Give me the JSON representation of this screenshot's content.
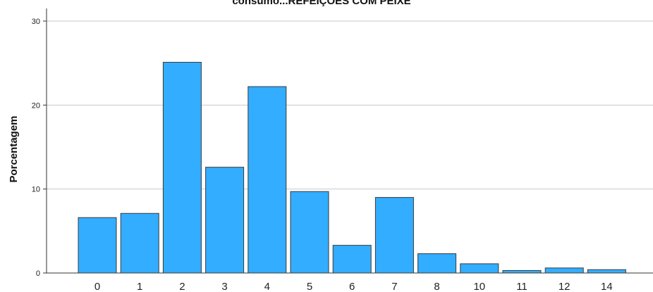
{
  "chart_data": {
    "type": "bar",
    "title": "consumo...REFEIÇÕES COM PEIXE",
    "xlabel": "",
    "ylabel": "Porcentagem",
    "categories": [
      "0",
      "1",
      "2",
      "3",
      "4",
      "5",
      "6",
      "7",
      "8",
      "10",
      "11",
      "12",
      "14"
    ],
    "values": [
      6.6,
      7.1,
      25.1,
      12.6,
      22.2,
      9.7,
      3.3,
      9.0,
      2.3,
      1.1,
      0.3,
      0.6,
      0.4
    ],
    "yticks": [
      "0",
      "10",
      "20",
      "30"
    ],
    "ylim": [
      0,
      30
    ],
    "grid": true,
    "legend": "none",
    "colors": {
      "bar_fill": "#33adff",
      "bar_stroke": "#3a3a3a",
      "grid": "#c8c8c8",
      "axis": "#333333"
    }
  }
}
